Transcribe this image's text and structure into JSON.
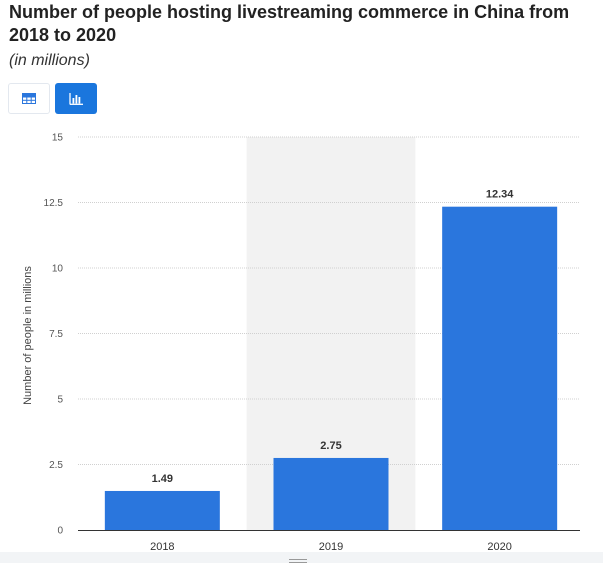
{
  "title": "Number of people hosting livestreaming commerce in China from 2018 to 2020",
  "subtitle": "(in millions)",
  "toolbar": {
    "table_icon": "table-view-icon",
    "chart_icon": "bar-chart-view-icon",
    "active_color": "#1a76dd"
  },
  "chart_data": {
    "type": "bar",
    "categories": [
      "2018",
      "2019",
      "2020"
    ],
    "values": [
      1.49,
      2.75,
      12.34
    ],
    "value_labels": [
      "1.49",
      "2.75",
      "12.34"
    ],
    "ylabel": "Number of people in millions",
    "xlabel": "",
    "ylim": [
      0,
      15
    ],
    "yticks": [
      0,
      2.5,
      5,
      7.5,
      10,
      12.5,
      15
    ],
    "ytick_labels": [
      "0",
      "2.5",
      "5",
      "7.5",
      "10",
      "12.5",
      "15"
    ],
    "bar_color": "#2a76dd",
    "highlighted_category": "2019",
    "grid": true
  }
}
